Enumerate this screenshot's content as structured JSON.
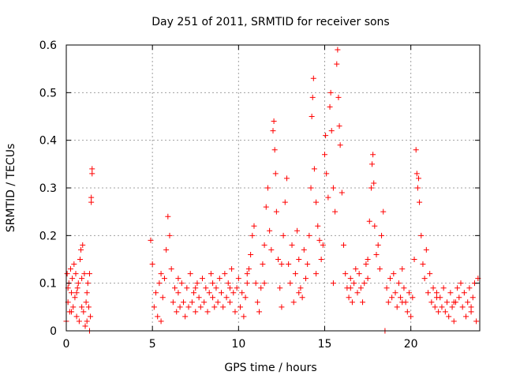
{
  "chart_data": {
    "type": "scatter",
    "title": "Day 251 of 2011, SRMTID for receiver sons",
    "xlabel": "GPS time / hours",
    "ylabel": "SRMTID / TECUs",
    "xlim": [
      0,
      24
    ],
    "ylim": [
      0,
      0.6
    ],
    "xticks": [
      0,
      5,
      10,
      15,
      20
    ],
    "yticks": [
      0,
      0.1,
      0.2,
      0.3,
      0.4,
      0.5,
      0.6
    ],
    "xtick_labels": [
      "0",
      "5",
      "10",
      "15",
      "20"
    ],
    "ytick_labels": [
      "0",
      "0.1",
      "0.2",
      "0.3",
      "0.4",
      "0.5",
      "0.6"
    ],
    "grid": true,
    "marker": "+",
    "series": [
      {
        "name": "SRMTID",
        "color": "#ff0000",
        "points": [
          [
            0.0,
            0.02
          ],
          [
            0.05,
            0.12
          ],
          [
            0.1,
            0.06
          ],
          [
            0.15,
            0.1
          ],
          [
            0.2,
            0.04
          ],
          [
            0.25,
            0.13
          ],
          [
            0.3,
            0.08
          ],
          [
            0.35,
            0.11
          ],
          [
            0.4,
            0.05
          ],
          [
            0.45,
            0.14
          ],
          [
            0.5,
            0.07
          ],
          [
            0.55,
            0.12
          ],
          [
            0.6,
            0.03
          ],
          [
            0.65,
            0.09
          ],
          [
            0.7,
            0.1
          ],
          [
            0.75,
            0.02
          ],
          [
            0.8,
            0.15
          ],
          [
            0.85,
            0.17
          ],
          [
            0.9,
            0.05
          ],
          [
            0.95,
            0.18
          ],
          [
            1.0,
            0.04
          ],
          [
            1.05,
            0.12
          ],
          [
            1.1,
            0.01
          ],
          [
            1.15,
            0.06
          ],
          [
            1.2,
            0.02
          ],
          [
            1.25,
            0.1
          ],
          [
            1.3,
            0.05
          ],
          [
            1.35,
            0.12
          ],
          [
            1.4,
            0.03
          ],
          [
            1.45,
            0.27
          ],
          [
            1.5,
            0.34
          ],
          [
            1.5,
            0.33
          ],
          [
            1.45,
            0.28
          ],
          [
            0.1,
            0.09
          ],
          [
            0.3,
            0.04
          ],
          [
            0.6,
            0.08
          ],
          [
            0.9,
            0.11
          ],
          [
            1.2,
            0.08
          ],
          [
            1.35,
            0.0
          ],
          [
            4.9,
            0.19
          ],
          [
            5.0,
            0.14
          ],
          [
            5.1,
            0.05
          ],
          [
            5.2,
            0.08
          ],
          [
            5.3,
            0.03
          ],
          [
            5.4,
            0.1
          ],
          [
            5.5,
            0.02
          ],
          [
            5.6,
            0.07
          ],
          [
            5.7,
            0.11
          ],
          [
            5.8,
            0.17
          ],
          [
            5.9,
            0.24
          ],
          [
            6.0,
            0.2
          ],
          [
            6.1,
            0.13
          ],
          [
            6.2,
            0.06
          ],
          [
            6.3,
            0.09
          ],
          [
            6.4,
            0.04
          ],
          [
            6.5,
            0.08
          ],
          [
            6.6,
            0.05
          ],
          [
            6.7,
            0.1
          ],
          [
            6.8,
            0.06
          ],
          [
            6.9,
            0.03
          ],
          [
            7.0,
            0.09
          ],
          [
            7.1,
            0.05
          ],
          [
            7.2,
            0.12
          ],
          [
            7.3,
            0.06
          ],
          [
            7.4,
            0.08
          ],
          [
            7.5,
            0.04
          ],
          [
            7.6,
            0.1
          ],
          [
            7.7,
            0.07
          ],
          [
            7.8,
            0.05
          ],
          [
            7.9,
            0.11
          ],
          [
            8.0,
            0.06
          ],
          [
            8.1,
            0.09
          ],
          [
            8.2,
            0.04
          ],
          [
            8.3,
            0.08
          ],
          [
            8.4,
            0.12
          ],
          [
            8.5,
            0.07
          ],
          [
            8.6,
            0.05
          ],
          [
            8.7,
            0.09
          ],
          [
            8.8,
            0.06
          ],
          [
            8.9,
            0.11
          ],
          [
            9.0,
            0.08
          ],
          [
            9.1,
            0.05
          ],
          [
            9.2,
            0.12
          ],
          [
            9.3,
            0.07
          ],
          [
            9.4,
            0.1
          ],
          [
            9.5,
            0.06
          ],
          [
            9.6,
            0.13
          ],
          [
            9.7,
            0.08
          ],
          [
            9.8,
            0.04
          ],
          [
            9.9,
            0.09
          ],
          [
            10.0,
            0.11
          ],
          [
            10.1,
            0.05
          ],
          [
            10.2,
            0.08
          ],
          [
            10.3,
            0.03
          ],
          [
            10.4,
            0.07
          ],
          [
            10.5,
            0.1
          ],
          [
            10.6,
            0.13
          ],
          [
            10.7,
            0.16
          ],
          [
            10.8,
            0.2
          ],
          [
            10.9,
            0.22
          ],
          [
            11.0,
            0.1
          ],
          [
            11.1,
            0.06
          ],
          [
            11.2,
            0.04
          ],
          [
            11.3,
            0.09
          ],
          [
            11.4,
            0.14
          ],
          [
            11.5,
            0.18
          ],
          [
            11.6,
            0.26
          ],
          [
            11.7,
            0.3
          ],
          [
            11.8,
            0.21
          ],
          [
            11.9,
            0.17
          ],
          [
            12.0,
            0.42
          ],
          [
            12.05,
            0.44
          ],
          [
            12.1,
            0.38
          ],
          [
            12.15,
            0.33
          ],
          [
            12.2,
            0.25
          ],
          [
            12.3,
            0.15
          ],
          [
            12.4,
            0.09
          ],
          [
            12.5,
            0.05
          ],
          [
            12.6,
            0.2
          ],
          [
            12.7,
            0.27
          ],
          [
            12.8,
            0.32
          ],
          [
            12.9,
            0.14
          ],
          [
            13.0,
            0.1
          ],
          [
            13.1,
            0.18
          ],
          [
            13.2,
            0.06
          ],
          [
            13.3,
            0.12
          ],
          [
            13.4,
            0.21
          ],
          [
            13.5,
            0.15
          ],
          [
            13.6,
            0.09
          ],
          [
            13.7,
            0.07
          ],
          [
            13.8,
            0.17
          ],
          [
            13.9,
            0.11
          ],
          [
            14.0,
            0.14
          ],
          [
            14.1,
            0.2
          ],
          [
            14.2,
            0.3
          ],
          [
            14.25,
            0.45
          ],
          [
            14.3,
            0.49
          ],
          [
            14.35,
            0.53
          ],
          [
            14.4,
            0.34
          ],
          [
            14.5,
            0.27
          ],
          [
            14.6,
            0.22
          ],
          [
            14.7,
            0.19
          ],
          [
            14.8,
            0.15
          ],
          [
            14.9,
            0.18
          ],
          [
            15.0,
            0.37
          ],
          [
            15.05,
            0.41
          ],
          [
            15.1,
            0.33
          ],
          [
            15.2,
            0.28
          ],
          [
            15.3,
            0.47
          ],
          [
            15.35,
            0.5
          ],
          [
            15.4,
            0.42
          ],
          [
            15.5,
            0.3
          ],
          [
            15.6,
            0.25
          ],
          [
            15.7,
            0.56
          ],
          [
            15.75,
            0.59
          ],
          [
            15.8,
            0.49
          ],
          [
            15.85,
            0.43
          ],
          [
            15.9,
            0.39
          ],
          [
            16.0,
            0.29
          ],
          [
            16.1,
            0.18
          ],
          [
            16.2,
            0.12
          ],
          [
            16.3,
            0.09
          ],
          [
            16.4,
            0.07
          ],
          [
            16.5,
            0.11
          ],
          [
            16.6,
            0.06
          ],
          [
            16.7,
            0.1
          ],
          [
            16.8,
            0.13
          ],
          [
            16.9,
            0.08
          ],
          [
            17.0,
            0.12
          ],
          [
            17.1,
            0.09
          ],
          [
            17.2,
            0.06
          ],
          [
            17.3,
            0.1
          ],
          [
            17.4,
            0.14
          ],
          [
            17.5,
            0.11
          ],
          [
            17.6,
            0.23
          ],
          [
            17.7,
            0.3
          ],
          [
            17.75,
            0.35
          ],
          [
            17.8,
            0.37
          ],
          [
            17.85,
            0.31
          ],
          [
            17.9,
            0.22
          ],
          [
            18.0,
            0.16
          ],
          [
            18.1,
            0.18
          ],
          [
            18.2,
            0.13
          ],
          [
            18.3,
            0.2
          ],
          [
            18.4,
            0.25
          ],
          [
            18.5,
            0.0
          ],
          [
            18.6,
            0.09
          ],
          [
            18.7,
            0.06
          ],
          [
            18.8,
            0.11
          ],
          [
            18.9,
            0.07
          ],
          [
            19.0,
            0.12
          ],
          [
            19.1,
            0.08
          ],
          [
            19.2,
            0.05
          ],
          [
            19.3,
            0.1
          ],
          [
            19.4,
            0.07
          ],
          [
            19.5,
            0.13
          ],
          [
            19.6,
            0.09
          ],
          [
            19.7,
            0.06
          ],
          [
            19.8,
            0.04
          ],
          [
            19.9,
            0.08
          ],
          [
            20.0,
            0.03
          ],
          [
            20.1,
            0.07
          ],
          [
            20.2,
            0.15
          ],
          [
            20.3,
            0.38
          ],
          [
            20.35,
            0.33
          ],
          [
            20.4,
            0.3
          ],
          [
            20.45,
            0.32
          ],
          [
            20.5,
            0.27
          ],
          [
            20.6,
            0.2
          ],
          [
            20.7,
            0.14
          ],
          [
            20.8,
            0.11
          ],
          [
            20.9,
            0.17
          ],
          [
            21.0,
            0.08
          ],
          [
            21.1,
            0.12
          ],
          [
            21.2,
            0.06
          ],
          [
            21.3,
            0.09
          ],
          [
            21.4,
            0.05
          ],
          [
            21.5,
            0.08
          ],
          [
            21.6,
            0.04
          ],
          [
            21.7,
            0.07
          ],
          [
            21.8,
            0.05
          ],
          [
            21.9,
            0.09
          ],
          [
            22.0,
            0.04
          ],
          [
            22.1,
            0.06
          ],
          [
            22.2,
            0.03
          ],
          [
            22.3,
            0.08
          ],
          [
            22.4,
            0.05
          ],
          [
            22.5,
            0.02
          ],
          [
            22.6,
            0.06
          ],
          [
            22.7,
            0.09
          ],
          [
            22.8,
            0.07
          ],
          [
            22.9,
            0.1
          ],
          [
            23.0,
            0.05
          ],
          [
            23.1,
            0.08
          ],
          [
            23.2,
            0.03
          ],
          [
            23.3,
            0.06
          ],
          [
            23.4,
            0.09
          ],
          [
            23.5,
            0.04
          ],
          [
            23.6,
            0.07
          ],
          [
            23.7,
            0.1
          ],
          [
            23.8,
            0.02
          ],
          [
            23.9,
            0.11
          ],
          [
            5.5,
            0.12
          ],
          [
            6.5,
            0.11
          ],
          [
            7.5,
            0.09
          ],
          [
            8.5,
            0.1
          ],
          [
            9.5,
            0.09
          ],
          [
            10.5,
            0.12
          ],
          [
            11.5,
            0.1
          ],
          [
            12.5,
            0.14
          ],
          [
            13.5,
            0.08
          ],
          [
            14.5,
            0.12
          ],
          [
            15.5,
            0.1
          ],
          [
            16.5,
            0.09
          ],
          [
            17.5,
            0.15
          ],
          [
            19.5,
            0.06
          ],
          [
            21.5,
            0.07
          ],
          [
            22.5,
            0.06
          ],
          [
            23.5,
            0.05
          ]
        ]
      }
    ]
  }
}
